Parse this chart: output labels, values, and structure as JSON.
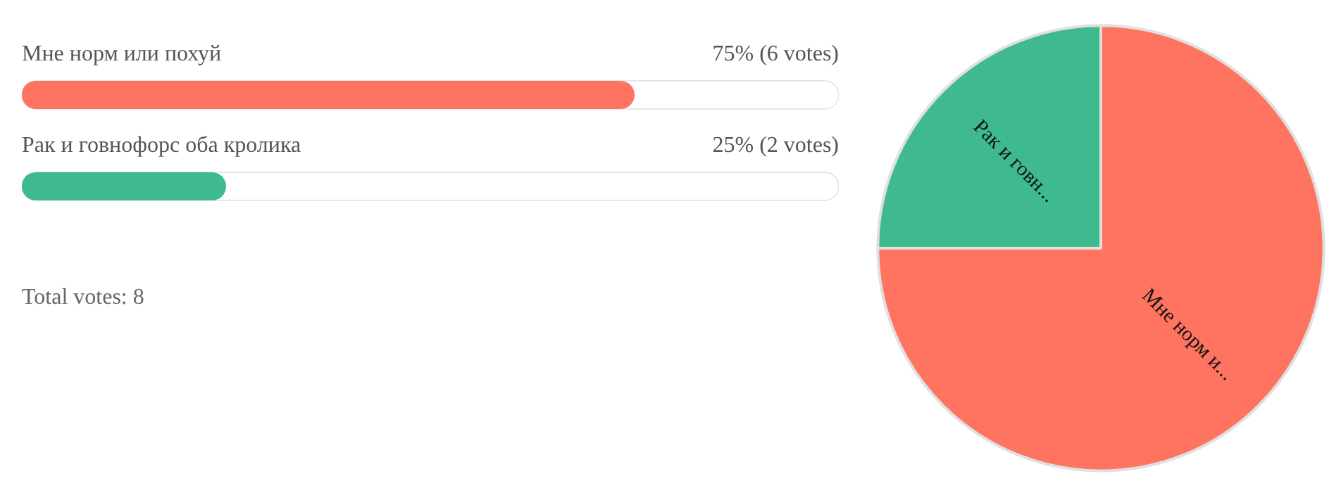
{
  "chart_data": [
    {
      "type": "bar",
      "orientation": "horizontal",
      "categories": [
        "Мне норм или похуй",
        "Рак и говнофорс оба кролика"
      ],
      "values": [
        75,
        25
      ],
      "colors": [
        "#ff7461",
        "#3fba8f"
      ],
      "value_labels": [
        "75% (6 votes)",
        "25% (2 votes)"
      ],
      "xlim": [
        0,
        100
      ],
      "tick_labels": false,
      "annotations": [
        "Total votes: 8"
      ]
    },
    {
      "type": "pie",
      "categories": [
        "Мне норм и...",
        "Рак и говн..."
      ],
      "values": [
        75,
        25
      ],
      "colors": [
        "#ff7461",
        "#3fba8f"
      ]
    }
  ]
}
